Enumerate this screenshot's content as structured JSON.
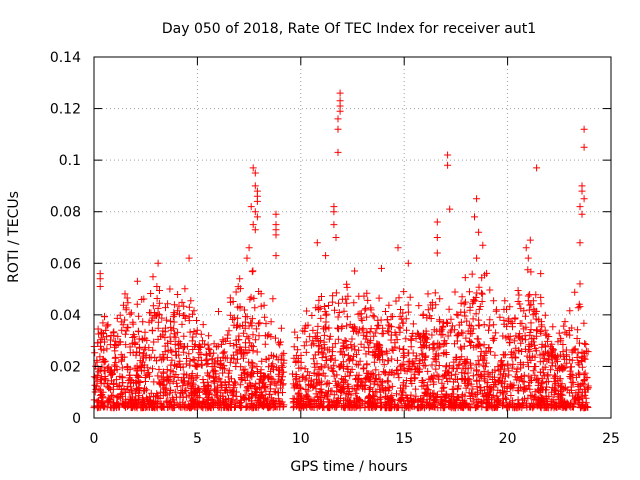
{
  "chart_data": {
    "type": "scatter",
    "title": "Day 050 of 2018, Rate Of TEC Index for receiver aut1",
    "xlabel": "GPS time / hours",
    "ylabel": "ROTI / TECUs",
    "xlim": [
      0,
      25
    ],
    "ylim": [
      0,
      0.14
    ],
    "x_ticks": [
      0,
      5,
      10,
      15,
      20,
      25
    ],
    "y_ticks": [
      0,
      0.02,
      0.04,
      0.06,
      0.08,
      0.1,
      0.12,
      0.14
    ],
    "x_tick_labels": [
      "0",
      "5",
      "10",
      "15",
      "20",
      "25"
    ],
    "y_tick_labels": [
      "0",
      "0.02",
      "0.04",
      "0.06",
      "0.08",
      "0.1",
      "0.12",
      "0.14"
    ],
    "grid": true,
    "marker": "+",
    "marker_color": "#ff0000",
    "series": [
      {
        "name": "ROTI",
        "time_range_hours": [
          0,
          23.9
        ],
        "data_gap_hours": [
          9.2,
          9.6
        ],
        "envelope": [
          {
            "x": 0.0,
            "y": 0.028
          },
          {
            "x": 0.5,
            "y": 0.045
          },
          {
            "x": 1.0,
            "y": 0.036
          },
          {
            "x": 1.5,
            "y": 0.05
          },
          {
            "x": 2.0,
            "y": 0.042
          },
          {
            "x": 2.5,
            "y": 0.05
          },
          {
            "x": 3.0,
            "y": 0.057
          },
          {
            "x": 3.5,
            "y": 0.048
          },
          {
            "x": 4.0,
            "y": 0.052
          },
          {
            "x": 4.5,
            "y": 0.057
          },
          {
            "x": 5.0,
            "y": 0.036
          },
          {
            "x": 5.5,
            "y": 0.033
          },
          {
            "x": 6.0,
            "y": 0.038
          },
          {
            "x": 6.5,
            "y": 0.047
          },
          {
            "x": 7.0,
            "y": 0.058
          },
          {
            "x": 7.5,
            "y": 0.052
          },
          {
            "x": 8.0,
            "y": 0.055
          },
          {
            "x": 8.5,
            "y": 0.047
          },
          {
            "x": 9.0,
            "y": 0.035
          },
          {
            "x": 9.6,
            "y": 0.03
          },
          {
            "x": 10.0,
            "y": 0.034
          },
          {
            "x": 10.5,
            "y": 0.045
          },
          {
            "x": 11.0,
            "y": 0.057
          },
          {
            "x": 11.5,
            "y": 0.052
          },
          {
            "x": 12.0,
            "y": 0.048
          },
          {
            "x": 12.5,
            "y": 0.052
          },
          {
            "x": 13.0,
            "y": 0.045
          },
          {
            "x": 13.5,
            "y": 0.05
          },
          {
            "x": 14.0,
            "y": 0.04
          },
          {
            "x": 14.5,
            "y": 0.045
          },
          {
            "x": 15.0,
            "y": 0.052
          },
          {
            "x": 15.5,
            "y": 0.047
          },
          {
            "x": 16.0,
            "y": 0.045
          },
          {
            "x": 16.5,
            "y": 0.05
          },
          {
            "x": 17.0,
            "y": 0.048
          },
          {
            "x": 17.5,
            "y": 0.05
          },
          {
            "x": 18.0,
            "y": 0.055
          },
          {
            "x": 18.5,
            "y": 0.057
          },
          {
            "x": 19.0,
            "y": 0.053
          },
          {
            "x": 19.5,
            "y": 0.047
          },
          {
            "x": 20.0,
            "y": 0.045
          },
          {
            "x": 20.5,
            "y": 0.05
          },
          {
            "x": 21.0,
            "y": 0.058
          },
          {
            "x": 21.5,
            "y": 0.047
          },
          {
            "x": 22.0,
            "y": 0.036
          },
          {
            "x": 22.5,
            "y": 0.034
          },
          {
            "x": 23.0,
            "y": 0.045
          },
          {
            "x": 23.5,
            "y": 0.047
          },
          {
            "x": 23.9,
            "y": 0.03
          }
        ],
        "notable_points": [
          {
            "x": 0.3,
            "y": 0.056
          },
          {
            "x": 0.3,
            "y": 0.054
          },
          {
            "x": 0.3,
            "y": 0.051
          },
          {
            "x": 2.1,
            "y": 0.053
          },
          {
            "x": 3.1,
            "y": 0.06
          },
          {
            "x": 4.6,
            "y": 0.062
          },
          {
            "x": 7.4,
            "y": 0.062
          },
          {
            "x": 7.7,
            "y": 0.097
          },
          {
            "x": 7.8,
            "y": 0.095
          },
          {
            "x": 7.8,
            "y": 0.09
          },
          {
            "x": 7.9,
            "y": 0.088
          },
          {
            "x": 7.9,
            "y": 0.086
          },
          {
            "x": 7.9,
            "y": 0.084
          },
          {
            "x": 7.6,
            "y": 0.082
          },
          {
            "x": 7.8,
            "y": 0.08
          },
          {
            "x": 7.9,
            "y": 0.078
          },
          {
            "x": 7.7,
            "y": 0.075
          },
          {
            "x": 7.8,
            "y": 0.073
          },
          {
            "x": 7.5,
            "y": 0.066
          },
          {
            "x": 8.8,
            "y": 0.079
          },
          {
            "x": 8.8,
            "y": 0.075
          },
          {
            "x": 8.8,
            "y": 0.073
          },
          {
            "x": 8.8,
            "y": 0.071
          },
          {
            "x": 8.8,
            "y": 0.063
          },
          {
            "x": 10.8,
            "y": 0.068
          },
          {
            "x": 11.2,
            "y": 0.063
          },
          {
            "x": 11.6,
            "y": 0.082
          },
          {
            "x": 11.6,
            "y": 0.08
          },
          {
            "x": 11.6,
            "y": 0.075
          },
          {
            "x": 11.7,
            "y": 0.07
          },
          {
            "x": 11.9,
            "y": 0.126
          },
          {
            "x": 11.9,
            "y": 0.123
          },
          {
            "x": 11.9,
            "y": 0.121
          },
          {
            "x": 11.9,
            "y": 0.119
          },
          {
            "x": 11.8,
            "y": 0.116
          },
          {
            "x": 11.8,
            "y": 0.112
          },
          {
            "x": 11.8,
            "y": 0.103
          },
          {
            "x": 12.6,
            "y": 0.057
          },
          {
            "x": 13.9,
            "y": 0.058
          },
          {
            "x": 14.7,
            "y": 0.066
          },
          {
            "x": 15.2,
            "y": 0.06
          },
          {
            "x": 16.6,
            "y": 0.076
          },
          {
            "x": 16.6,
            "y": 0.07
          },
          {
            "x": 16.6,
            "y": 0.064
          },
          {
            "x": 17.1,
            "y": 0.102
          },
          {
            "x": 17.1,
            "y": 0.098
          },
          {
            "x": 17.2,
            "y": 0.081
          },
          {
            "x": 18.5,
            "y": 0.085
          },
          {
            "x": 18.4,
            "y": 0.078
          },
          {
            "x": 18.6,
            "y": 0.072
          },
          {
            "x": 18.5,
            "y": 0.062
          },
          {
            "x": 18.8,
            "y": 0.067
          },
          {
            "x": 20.9,
            "y": 0.066
          },
          {
            "x": 21.1,
            "y": 0.069
          },
          {
            "x": 21.0,
            "y": 0.062
          },
          {
            "x": 21.4,
            "y": 0.097
          },
          {
            "x": 21.6,
            "y": 0.056
          },
          {
            "x": 23.7,
            "y": 0.112
          },
          {
            "x": 23.7,
            "y": 0.105
          },
          {
            "x": 23.6,
            "y": 0.09
          },
          {
            "x": 23.6,
            "y": 0.088
          },
          {
            "x": 23.7,
            "y": 0.085
          },
          {
            "x": 23.5,
            "y": 0.082
          },
          {
            "x": 23.6,
            "y": 0.079
          },
          {
            "x": 23.5,
            "y": 0.068
          },
          {
            "x": 23.5,
            "y": 0.052
          }
        ]
      }
    ]
  }
}
